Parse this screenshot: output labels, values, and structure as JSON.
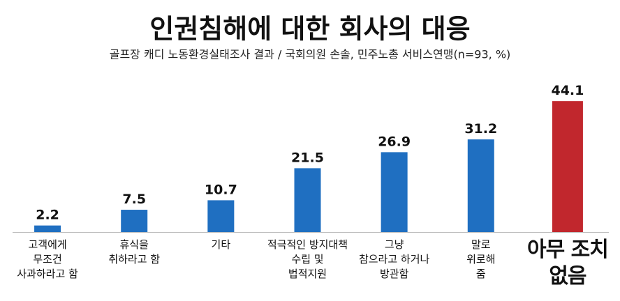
{
  "chart_data": {
    "type": "bar",
    "title": "인권침해에 대한 회사의 대응",
    "subtitle": "골프장 캐디 노동환경실태조사 결과 / 국회의원 손솔, 민주노총 서비스연맹(n=93, %)",
    "categories": [
      "고객에게\n무조건\n사과하라고 함",
      "휴식을\n취하라고 함",
      "기타",
      "적극적인 방지대책\n수립 및\n법적지원",
      "그냥\n참으라고 하거나\n방관함",
      "말로\n위로해\n줌",
      "아무 조치\n없음"
    ],
    "values": [
      2.2,
      7.5,
      10.7,
      21.5,
      26.9,
      31.2,
      44.1
    ],
    "colors": [
      "#1f6fc1",
      "#1f6fc1",
      "#1f6fc1",
      "#1f6fc1",
      "#1f6fc1",
      "#1f6fc1",
      "#c1272d"
    ],
    "ylim": [
      0,
      50
    ]
  }
}
